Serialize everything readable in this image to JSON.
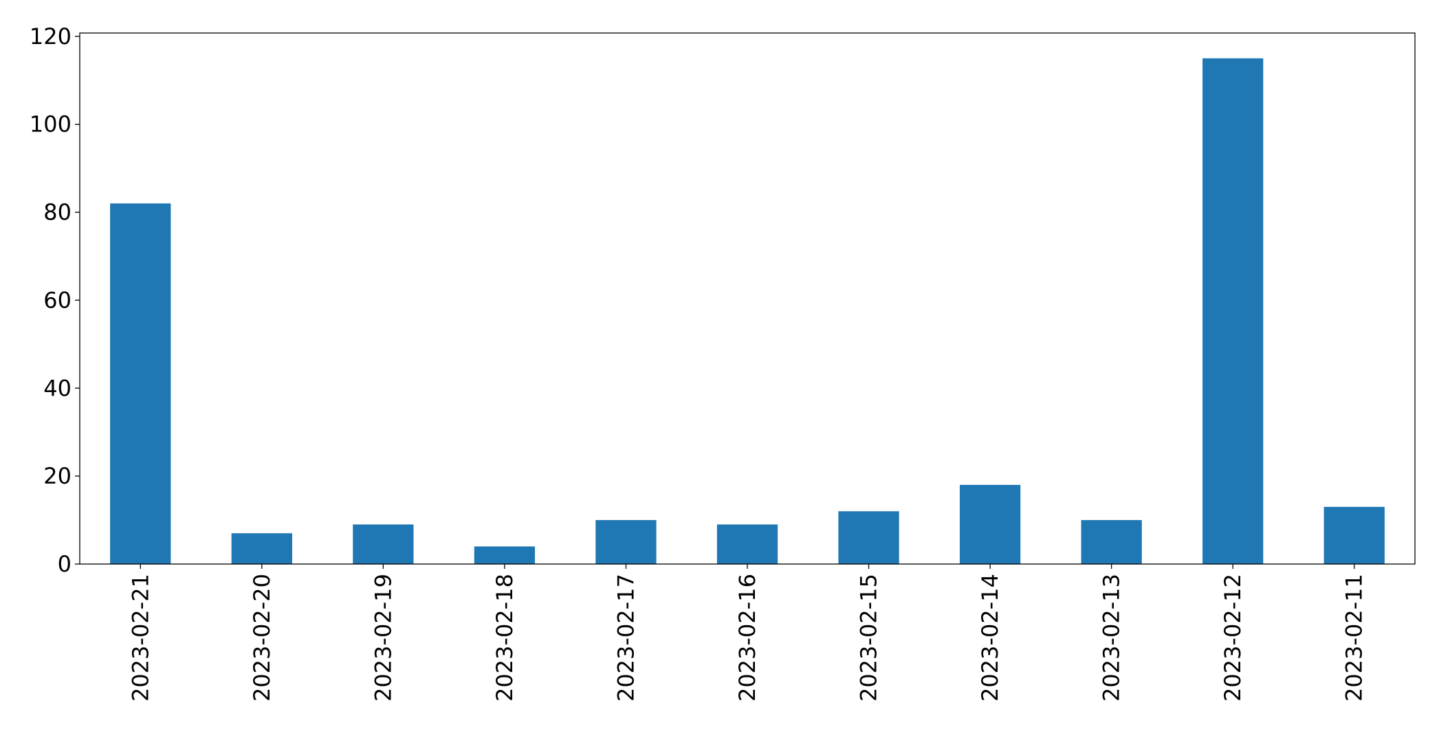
{
  "chart_data": {
    "type": "bar",
    "categories": [
      "2023-02-21",
      "2023-02-20",
      "2023-02-19",
      "2023-02-18",
      "2023-02-17",
      "2023-02-16",
      "2023-02-15",
      "2023-02-14",
      "2023-02-13",
      "2023-02-12",
      "2023-02-11"
    ],
    "values": [
      82,
      7,
      9,
      4,
      10,
      9,
      12,
      18,
      10,
      115,
      13
    ],
    "color": "#1f77b4",
    "ylim": [
      0,
      120.75
    ],
    "yticks": [
      0,
      20,
      40,
      60,
      80,
      100,
      120
    ],
    "grid": false
  }
}
